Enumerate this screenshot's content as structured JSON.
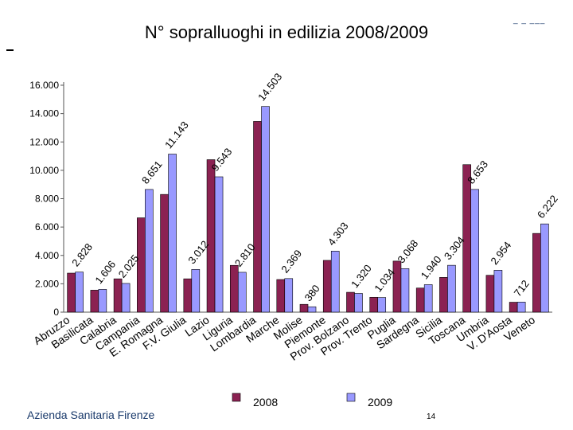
{
  "header": {
    "title": "N° sopralluoghi in edilizia 2008/2009"
  },
  "footer": {
    "left_text": "Azienda Sanitaria Firenze",
    "page_number": "14"
  },
  "chart_data": {
    "type": "bar",
    "title": "N° sopralluoghi in edilizia 2008/2009",
    "xlabel": "",
    "ylabel": "",
    "ylim": [
      0,
      16000
    ],
    "yticks": [
      "0",
      "2.000",
      "4.000",
      "6.000",
      "8.000",
      "10.000",
      "12.000",
      "14.000",
      "16.000"
    ],
    "categories": [
      "Abruzzo",
      "Basilicata",
      "Calabria",
      "Campania",
      "E. Romagna",
      "F.V. Giulia",
      "Lazio",
      "Liguria",
      "Lombardia",
      "Marche",
      "Molise",
      "Piemonte",
      "Prov. Bolzano",
      "Prov. Trento",
      "Puglia",
      "Sardegna",
      "Sicilia",
      "Toscana",
      "Umbria",
      "V. D'Aosta",
      "Veneto"
    ],
    "series": [
      {
        "name": "2008",
        "color": "#8b2252",
        "values": [
          2750,
          1550,
          2350,
          6650,
          8300,
          2350,
          10750,
          3300,
          13450,
          2300,
          550,
          3650,
          1400,
          1050,
          3600,
          1700,
          2450,
          10400,
          2600,
          700,
          5550
        ]
      },
      {
        "name": "2009",
        "color": "#9999ff",
        "values": [
          2828,
          1606,
          2025,
          8651,
          11143,
          3012,
          9543,
          2810,
          14503,
          2369,
          380,
          4303,
          1320,
          1034,
          3068,
          1940,
          3304,
          8653,
          2954,
          712,
          6222
        ]
      }
    ],
    "data_labels": {
      "indices": [
        0,
        1,
        2,
        3,
        4,
        5,
        6,
        7,
        8,
        9,
        10,
        11,
        12,
        13,
        14,
        15,
        16,
        17,
        18,
        19,
        20
      ],
      "texts": [
        "2.828",
        "1.606",
        "2.025",
        "8.651",
        "11.143",
        "3.012",
        "9.543",
        "2.810",
        "14.503",
        "2.369",
        "380",
        "4.303",
        "1.320",
        "1.034",
        "3.068",
        "1.940",
        "3.304",
        "8.653",
        "2.954",
        "712",
        "6.222"
      ]
    },
    "legend": {
      "position": "bottom",
      "entries": [
        "2008",
        "2009"
      ]
    },
    "grid": false
  }
}
